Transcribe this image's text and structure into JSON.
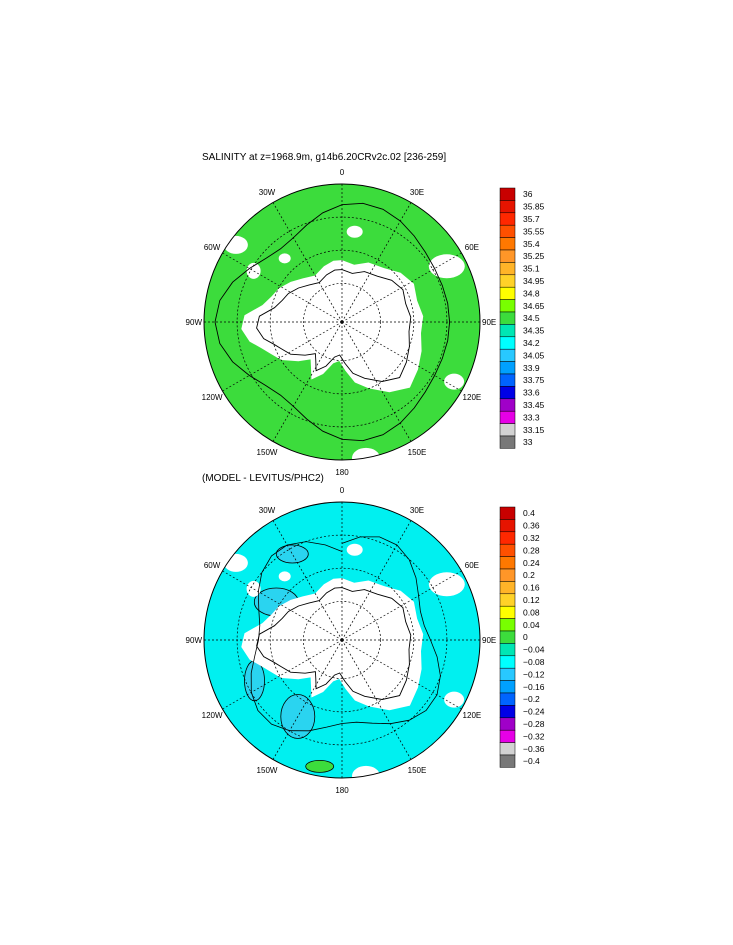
{
  "chart_data": [
    {
      "type": "heatmap",
      "projection": "south polar stereographic",
      "title": "SALINITY at z=1968.9m, g14b6.20CRv2c.02 [236-259]",
      "longitude_labels": [
        "0",
        "30E",
        "60E",
        "90E",
        "120E",
        "150E",
        "180",
        "150W",
        "120W",
        "90W",
        "60W",
        "30W"
      ],
      "colorbar": {
        "labels": [
          "36",
          "35.85",
          "35.7",
          "35.55",
          "35.4",
          "35.25",
          "35.1",
          "34.95",
          "34.8",
          "34.65",
          "34.5",
          "34.35",
          "34.2",
          "34.05",
          "33.9",
          "33.75",
          "33.6",
          "33.45",
          "33.3",
          "33.15",
          "33"
        ],
        "colors": [
          "#c80000",
          "#e61400",
          "#ff2800",
          "#ff5000",
          "#ff7800",
          "#ff9628",
          "#ffb428",
          "#ffd228",
          "#ffff00",
          "#78ff00",
          "#3cdc3c",
          "#00e6b4",
          "#00ffff",
          "#28c8ff",
          "#00a0ff",
          "#0064ff",
          "#0000e6",
          "#a000c8",
          "#e600e6",
          "#d2d2d2",
          "#787878"
        ]
      },
      "dominant_value_range": [
        34.65,
        34.8
      ],
      "field_color": "#3cdc3c",
      "land_color": "#ffffff"
    },
    {
      "type": "heatmap",
      "projection": "south polar stereographic",
      "title": "(MODEL - LEVITUS/PHC2)",
      "longitude_labels": [
        "0",
        "30E",
        "60E",
        "90E",
        "120E",
        "150E",
        "180",
        "150W",
        "120W",
        "90W",
        "60W",
        "30W"
      ],
      "colorbar": {
        "labels": [
          "0.4",
          "0.36",
          "0.32",
          "0.28",
          "0.24",
          "0.2",
          "0.16",
          "0.12",
          "0.08",
          "0.04",
          "0",
          "−0.04",
          "−0.08",
          "−0.12",
          "−0.16",
          "−0.2",
          "−0.24",
          "−0.28",
          "−0.32",
          "−0.36",
          "−0.4"
        ],
        "colors": [
          "#c80000",
          "#e61400",
          "#ff2800",
          "#ff5000",
          "#ff7800",
          "#ff9628",
          "#ffb428",
          "#ffd228",
          "#ffff00",
          "#78ff00",
          "#3cdc3c",
          "#00e6b4",
          "#00ffff",
          "#28c8ff",
          "#00a0ff",
          "#0064ff",
          "#0000e6",
          "#a000c8",
          "#e600e6",
          "#d2d2d2",
          "#787878"
        ]
      },
      "dominant_value_range": [
        -0.04,
        0
      ],
      "field_color": "#00f0f0",
      "patch_color": "#2ad4f0",
      "land_color": "#ffffff"
    }
  ]
}
